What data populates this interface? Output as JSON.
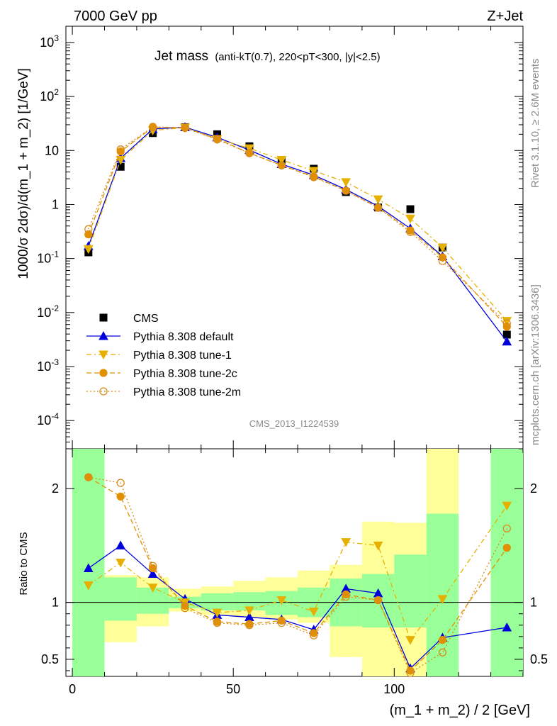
{
  "header": {
    "left": "7000 GeV pp",
    "right": "Z+Jet"
  },
  "side_text": {
    "rivet": "Rivet 3.1.10, ≥ 2.6M events",
    "mcplots": "mcplots.cern.ch [arXiv:1306.3436]"
  },
  "analysis_id": "CMS_2013_I1224539",
  "plot_title": {
    "main": "Jet mass",
    "sub": "(anti-kT(0.7), 220<pT<300, |y|<2.5)"
  },
  "colors": {
    "cms": "#000000",
    "default": "#0000dd",
    "tune1": "#e6b000",
    "tune2c": "#e09000",
    "tune2m": "#d98c1a",
    "band_green": "#99ff99",
    "band_yellow": "#ffff99"
  },
  "chart_data": [
    {
      "type": "scatter",
      "xlabel": "(m_1 + m_2) / 2 [GeV]",
      "ylabel": "1000/σ 2dσ)/d(m_1 + m_2) [1/GeV]",
      "yscale": "log",
      "xlim": [
        -2,
        140
      ],
      "ylim": [
        3e-05,
        2000
      ],
      "ytick_labels": [
        "10^-4",
        "10^-3",
        "10^-2",
        "10^-1",
        "1",
        "10",
        "10^2",
        "10^3"
      ],
      "legend_position": "lower-left",
      "x": [
        5,
        15,
        25,
        35,
        45,
        55,
        65,
        75,
        85,
        95,
        105,
        115,
        135
      ],
      "series": [
        {
          "name": "CMS",
          "values": [
            0.13,
            5.0,
            21,
            27,
            20,
            12,
            6.5,
            4.6,
            1.7,
            0.88,
            0.82,
            0.16,
            0.0039
          ]
        },
        {
          "name": "Pythia 8.308 default",
          "values": [
            0.17,
            7.2,
            25,
            27,
            17.5,
            10.2,
            5.6,
            3.5,
            1.9,
            0.93,
            0.36,
            0.11,
            0.0029
          ]
        },
        {
          "name": "Pythia 8.308 tune-1",
          "values": [
            0.15,
            6.7,
            23.5,
            26.5,
            16.3,
            11,
            6.7,
            4.2,
            2.6,
            1.25,
            0.55,
            0.16,
            0.007
          ]
        },
        {
          "name": "Pythia 8.308 tune-2c",
          "values": [
            0.28,
            9.6,
            27,
            26.5,
            16.4,
            9.0,
            5.3,
            3.3,
            1.8,
            0.88,
            0.33,
            0.105,
            0.0055
          ]
        },
        {
          "name": "Pythia 8.308 tune-2m",
          "values": [
            0.35,
            10.5,
            27.5,
            26,
            16.0,
            8.9,
            5.3,
            3.2,
            1.8,
            0.87,
            0.31,
            0.09,
            0.0063
          ]
        }
      ]
    },
    {
      "type": "scatter",
      "ylabel": "Ratio to CMS",
      "xlim": [
        -2,
        140
      ],
      "ylim": [
        0.35,
        2.35
      ],
      "xticks": [
        0,
        50,
        100
      ],
      "yticks": [
        0.5,
        1,
        2
      ],
      "x": [
        5,
        15,
        25,
        35,
        45,
        55,
        65,
        75,
        85,
        95,
        105,
        115,
        135
      ],
      "bins": [
        [
          0,
          10
        ],
        [
          10,
          20
        ],
        [
          20,
          30
        ],
        [
          30,
          40
        ],
        [
          40,
          50
        ],
        [
          50,
          60
        ],
        [
          60,
          70
        ],
        [
          70,
          80
        ],
        [
          80,
          90
        ],
        [
          90,
          100
        ],
        [
          100,
          110
        ],
        [
          110,
          120
        ],
        [
          130,
          140
        ]
      ],
      "band_green": [
        [
          0.35,
          2.35
        ],
        [
          0.84,
          1.22
        ],
        [
          0.9,
          1.13
        ],
        [
          0.95,
          1.05
        ],
        [
          0.93,
          1.08
        ],
        [
          0.93,
          1.09
        ],
        [
          0.89,
          1.1
        ],
        [
          0.87,
          1.13
        ],
        [
          0.79,
          1.21
        ],
        [
          0.78,
          1.25
        ],
        [
          0.78,
          1.42
        ],
        [
          0.35,
          1.78
        ],
        [
          0.35,
          2.35
        ]
      ],
      "band_yellow": [
        [
          0.35,
          2.35
        ],
        [
          0.65,
          1.24
        ],
        [
          0.79,
          1.22
        ],
        [
          0.92,
          1.12
        ],
        [
          0.89,
          1.14
        ],
        [
          0.87,
          1.19
        ],
        [
          0.85,
          1.22
        ],
        [
          0.82,
          1.28
        ],
        [
          0.52,
          1.33
        ],
        [
          0.35,
          1.71
        ],
        [
          0.35,
          1.7
        ],
        [
          0.35,
          2.35
        ],
        [
          0.35,
          2.35
        ]
      ],
      "series": [
        {
          "name": "Pythia 8.308 default",
          "values": [
            1.3,
            1.5,
            1.25,
            1.03,
            0.89,
            0.87,
            0.85,
            0.76,
            1.12,
            1.08,
            0.42,
            0.69,
            0.78
          ]
        },
        {
          "name": "Pythia 8.308 tune-1",
          "values": [
            1.15,
            1.35,
            1.13,
            1.0,
            0.91,
            0.93,
            1.02,
            0.92,
            1.53,
            1.5,
            0.67,
            1.03,
            1.85
          ]
        },
        {
          "name": "Pythia 8.308 tune-2c",
          "values": [
            2.1,
            1.93,
            1.3,
            0.97,
            0.83,
            0.81,
            0.84,
            0.73,
            1.07,
            1.02,
            0.4,
            0.67,
            1.48
          ]
        },
        {
          "name": "Pythia 8.308 tune-2m",
          "values": [
            2.1,
            2.05,
            1.32,
            0.95,
            0.82,
            0.8,
            0.82,
            0.71,
            1.05,
            1.02,
            0.38,
            0.56,
            1.65
          ]
        }
      ]
    }
  ]
}
